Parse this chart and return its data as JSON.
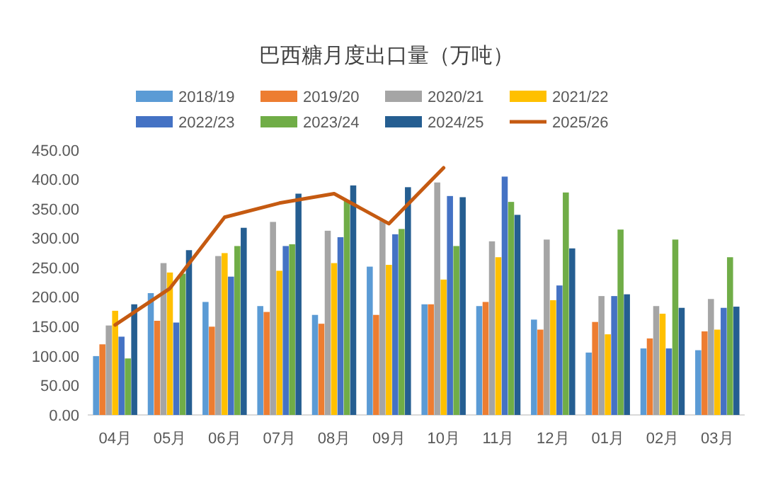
{
  "chart_data": {
    "type": "bar",
    "title": "巴西糖月度出口量（万吨）",
    "categories": [
      "04月",
      "05月",
      "06月",
      "07月",
      "08月",
      "09月",
      "10月",
      "11月",
      "12月",
      "01月",
      "02月",
      "03月"
    ],
    "ylim": [
      0,
      450
    ],
    "yticks": [
      {
        "value": 0,
        "label": "0.00"
      },
      {
        "value": 50,
        "label": "50.00"
      },
      {
        "value": 100,
        "label": "100.00"
      },
      {
        "value": 150,
        "label": "150.00"
      },
      {
        "value": 200,
        "label": "200.00"
      },
      {
        "value": 250,
        "label": "250.00"
      },
      {
        "value": 300,
        "label": "300.00"
      },
      {
        "value": 350,
        "label": "350.00"
      },
      {
        "value": 400,
        "label": "400.00"
      },
      {
        "value": 450,
        "label": "450.00"
      }
    ],
    "legend": "top",
    "grid": false,
    "series": [
      {
        "name": "2018/19",
        "color": "#5b9bd5",
        "values": [
          100,
          207,
          192,
          185,
          170,
          252,
          188,
          185,
          162,
          106,
          113,
          110
        ]
      },
      {
        "name": "2019/20",
        "color": "#ed7d31",
        "values": [
          120,
          160,
          150,
          175,
          155,
          170,
          188,
          192,
          145,
          158,
          130,
          142
        ]
      },
      {
        "name": "2020/21",
        "color": "#a5a5a5",
        "values": [
          152,
          258,
          270,
          328,
          313,
          330,
          395,
          295,
          298,
          202,
          185,
          197
        ]
      },
      {
        "name": "2021/22",
        "color": "#ffc000",
        "values": [
          177,
          242,
          275,
          245,
          258,
          255,
          230,
          268,
          195,
          137,
          172,
          145
        ]
      },
      {
        "name": "2022/23",
        "color": "#4472c4",
        "values": [
          133,
          157,
          235,
          287,
          302,
          307,
          372,
          405,
          220,
          202,
          113,
          182
        ]
      },
      {
        "name": "2023/24",
        "color": "#70ad47",
        "values": [
          96,
          240,
          287,
          290,
          365,
          316,
          287,
          362,
          378,
          315,
          298,
          268
        ]
      },
      {
        "name": "2024/25",
        "color": "#255e91",
        "values": [
          188,
          280,
          318,
          376,
          390,
          387,
          370,
          340,
          283,
          205,
          182,
          184
        ]
      },
      {
        "name": "2025/26",
        "type": "line",
        "color": "#c55a11",
        "values": [
          153,
          215,
          336,
          360,
          376,
          325,
          420,
          null,
          null,
          null,
          null,
          null
        ]
      }
    ]
  }
}
